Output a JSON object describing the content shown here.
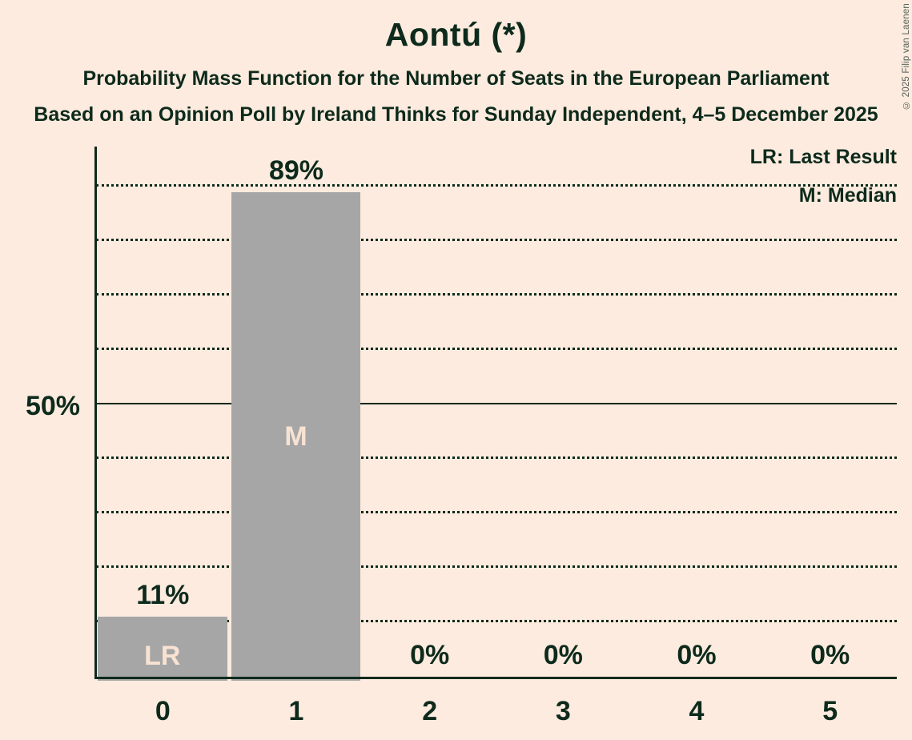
{
  "header": {
    "title": "Aontú (*)",
    "subtitle1": "Probability Mass Function for the Number of Seats in the European Parliament",
    "subtitle2": "Based on an Opinion Poll by Ireland Thinks for Sunday Independent, 4–5 December 2025"
  },
  "copyright": "© 2025 Filip van Laenen",
  "chart_data": {
    "type": "bar",
    "title": "Aontú (*)",
    "categories": [
      "0",
      "1",
      "2",
      "3",
      "4",
      "5"
    ],
    "values": [
      11,
      89,
      0,
      0,
      0,
      0
    ],
    "bar_labels": [
      "11%",
      "89%",
      "0%",
      "0%",
      "0%",
      "0%"
    ],
    "annotations": [
      {
        "index": 0,
        "text": "LR",
        "position": "bottom",
        "meaning": "Last Result"
      },
      {
        "index": 1,
        "text": "M",
        "position": "middle",
        "meaning": "Median"
      }
    ],
    "xlabel": "",
    "ylabel": "",
    "ylim": [
      0,
      100
    ],
    "y_tick_labels": {
      "50": "50%"
    },
    "gridlines_percent": [
      10,
      20,
      30,
      40,
      50,
      60,
      70,
      80,
      90
    ],
    "solid_gridline": 50,
    "grid_style": "dotted",
    "legend_position": "top-right",
    "legend": {
      "lr": "LR: Last Result",
      "m": "M: Median"
    }
  },
  "colors": {
    "background": "#fcebde",
    "ink": "#0d2a1c",
    "bar": "#a6a6a6",
    "bar_label": "#f8e2d2",
    "copyright": "#55605a"
  }
}
